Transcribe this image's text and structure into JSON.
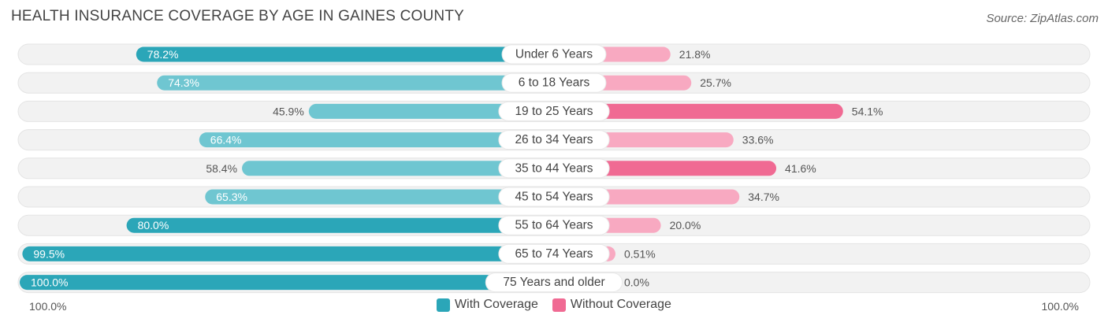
{
  "title": "HEALTH INSURANCE COVERAGE BY AGE IN GAINES COUNTY",
  "source": "Source: ZipAtlas.com",
  "colors": {
    "with_dark": "#2ba6b8",
    "with_light": "#6fc6d1",
    "without_dark": "#f06a93",
    "without_light": "#f8a9c1",
    "track": "#f2f2f2"
  },
  "legend": {
    "with_label": "With Coverage",
    "without_label": "Without Coverage"
  },
  "axis": {
    "left_label": "100.0%",
    "right_label": "100.0%"
  },
  "chart_data": {
    "type": "bar",
    "orientation": "horizontal-diverging",
    "title": "HEALTH INSURANCE COVERAGE BY AGE IN GAINES COUNTY",
    "categories": [
      "Under 6 Years",
      "6 to 18 Years",
      "19 to 25 Years",
      "26 to 34 Years",
      "35 to 44 Years",
      "45 to 54 Years",
      "55 to 64 Years",
      "65 to 74 Years",
      "75 Years and older"
    ],
    "series": [
      {
        "name": "With Coverage",
        "values": [
          78.2,
          74.3,
          45.9,
          66.4,
          58.4,
          65.3,
          80.0,
          99.5,
          100.0
        ],
        "labels": [
          "78.2%",
          "74.3%",
          "45.9%",
          "66.4%",
          "58.4%",
          "65.3%",
          "80.0%",
          "99.5%",
          "100.0%"
        ]
      },
      {
        "name": "Without Coverage",
        "values": [
          21.8,
          25.7,
          54.1,
          33.6,
          41.6,
          34.7,
          20.0,
          0.51,
          0.0
        ],
        "labels": [
          "21.8%",
          "25.7%",
          "54.1%",
          "33.6%",
          "41.6%",
          "34.7%",
          "20.0%",
          "0.51%",
          "0.0%"
        ]
      }
    ],
    "xlim": [
      -100,
      100
    ],
    "legend_position": "bottom-center"
  }
}
